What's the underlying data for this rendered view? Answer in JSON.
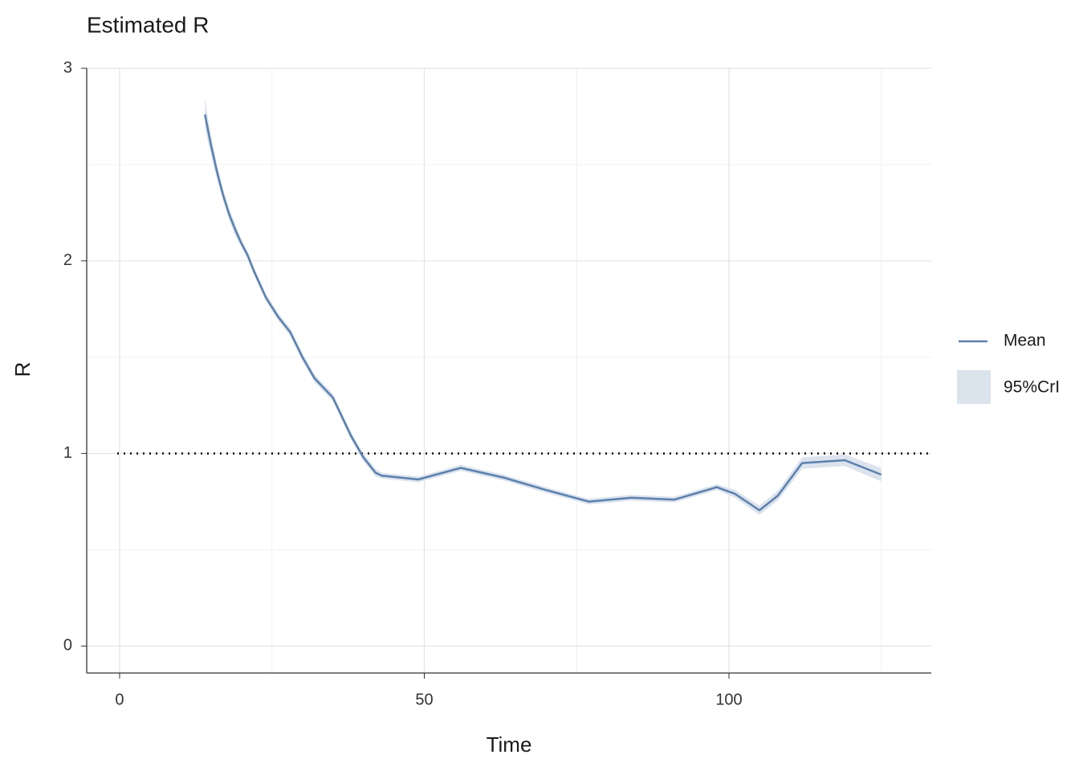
{
  "chart_data": {
    "type": "line",
    "title": "Estimated R",
    "x_label": "Time",
    "y_label": "R",
    "x": [
      14,
      15,
      16,
      17,
      18,
      19,
      20,
      21,
      22,
      24,
      26,
      28,
      30,
      32,
      35,
      38,
      40,
      42,
      43,
      49,
      56,
      63,
      70,
      77,
      84,
      91,
      98,
      101,
      105,
      108,
      112,
      119,
      125
    ],
    "series": [
      {
        "name": "Mean",
        "color": "#5b80ad",
        "values": [
          2.76,
          2.6,
          2.46,
          2.34,
          2.24,
          2.16,
          2.09,
          2.03,
          1.95,
          1.81,
          1.71,
          1.63,
          1.5,
          1.39,
          1.29,
          1.09,
          0.98,
          0.9,
          0.885,
          0.865,
          0.925,
          0.875,
          0.81,
          0.75,
          0.77,
          0.76,
          0.825,
          0.79,
          0.705,
          0.78,
          0.95,
          0.965,
          0.89
        ]
      }
    ],
    "ribbon": {
      "name": "95%CrI",
      "color": "#dbe3ed",
      "lower": [
        2.69,
        2.55,
        2.42,
        2.31,
        2.21,
        2.13,
        2.07,
        2.01,
        1.93,
        1.79,
        1.69,
        1.61,
        1.48,
        1.37,
        1.27,
        1.07,
        0.96,
        0.88,
        0.87,
        0.85,
        0.91,
        0.86,
        0.795,
        0.735,
        0.755,
        0.745,
        0.81,
        0.77,
        0.68,
        0.755,
        0.92,
        0.935,
        0.855
      ],
      "upper": [
        2.84,
        2.65,
        2.5,
        2.37,
        2.27,
        2.19,
        2.11,
        2.05,
        1.97,
        1.83,
        1.73,
        1.65,
        1.52,
        1.41,
        1.31,
        1.11,
        1.0,
        0.92,
        0.9,
        0.88,
        0.94,
        0.89,
        0.825,
        0.765,
        0.785,
        0.775,
        0.84,
        0.81,
        0.73,
        0.805,
        0.98,
        0.995,
        0.925
      ]
    },
    "reference_line": 1,
    "xlim": [
      -5.4,
      133.2
    ],
    "ylim": [
      -0.14,
      3.0
    ],
    "xticks": [
      0,
      50,
      100
    ],
    "yticks": [
      0,
      1,
      2,
      3
    ],
    "xminor": [
      25,
      75,
      125
    ],
    "yminor": [
      0.5,
      1.5,
      2.5
    ],
    "grid": true,
    "legend": "right"
  }
}
